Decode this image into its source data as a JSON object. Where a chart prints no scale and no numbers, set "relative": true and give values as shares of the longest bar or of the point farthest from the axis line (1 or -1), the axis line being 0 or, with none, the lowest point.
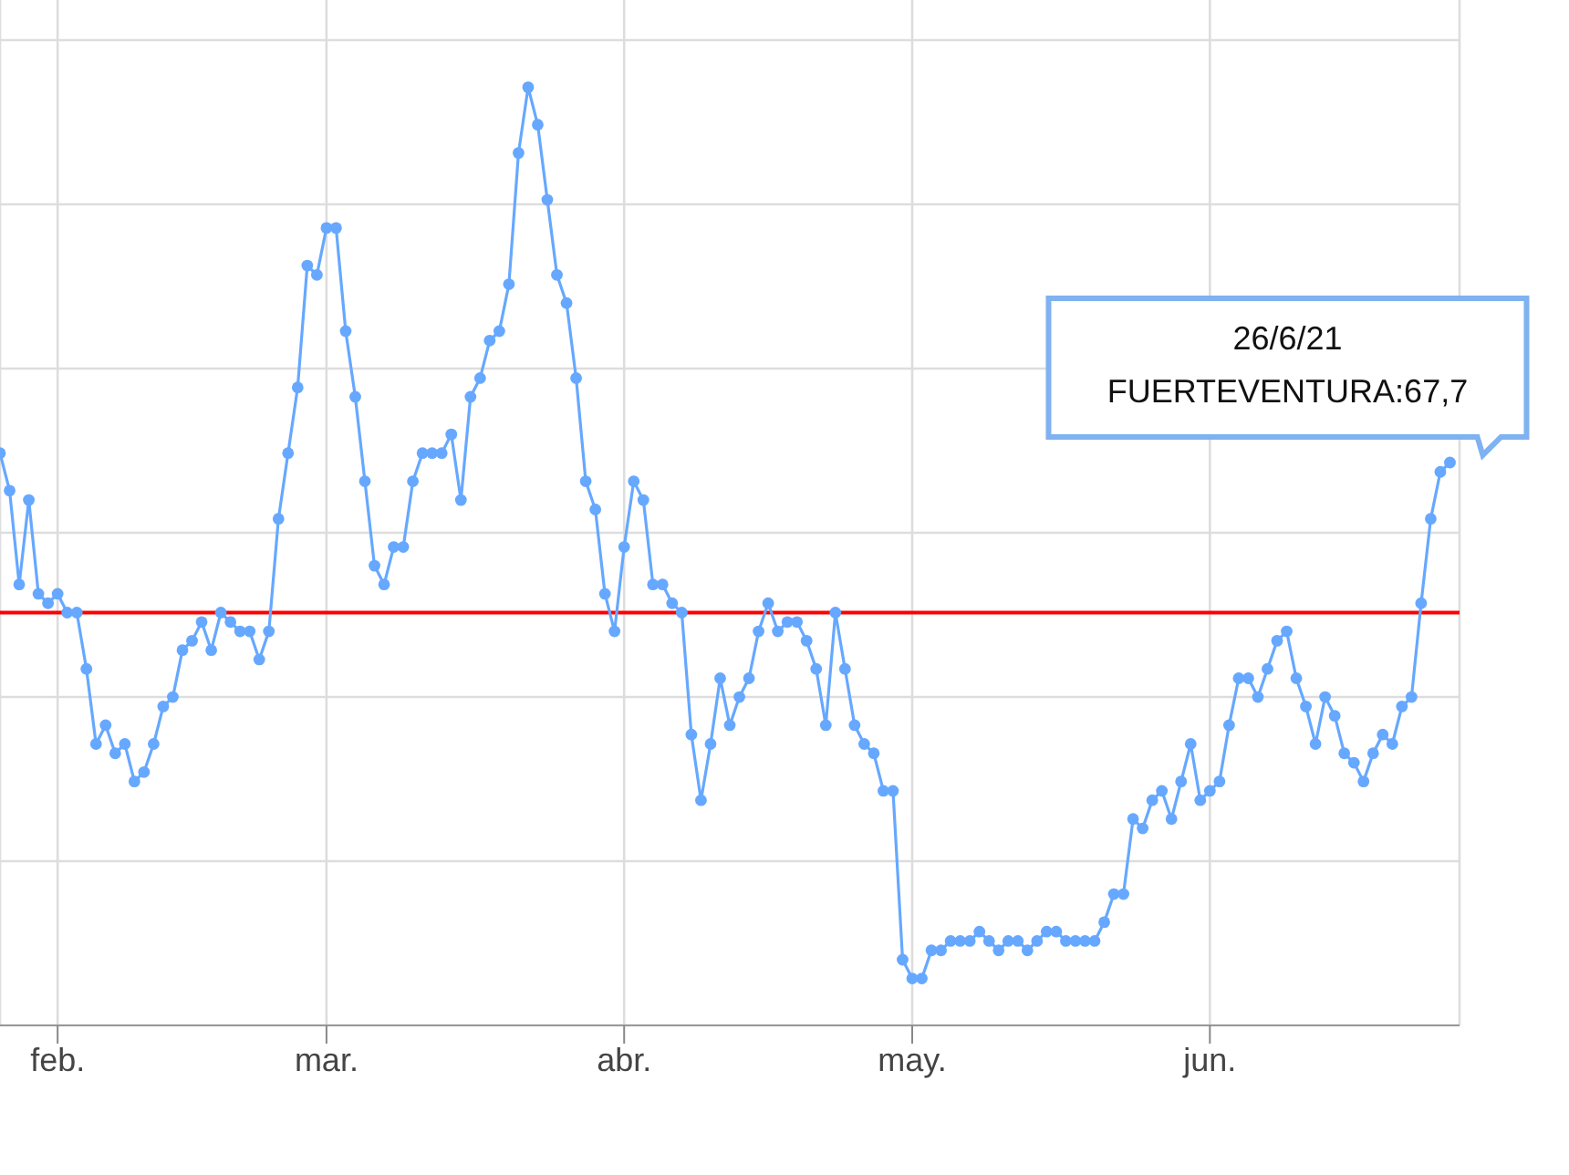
{
  "chart_data": {
    "type": "line",
    "relative": true,
    "grid": true,
    "tick_labels": "x",
    "marker": "circle",
    "line_style": "solid",
    "xlim": [
      "--01-26",
      "--06-27"
    ],
    "xticks": [
      {
        "value": "--02-01",
        "label": "feb."
      },
      {
        "value": "--03-01",
        "label": "mar."
      },
      {
        "value": "--04-01",
        "label": "abr."
      },
      {
        "value": "--05-01",
        "label": "may."
      },
      {
        "value": "--06-01",
        "label": "jun."
      }
    ],
    "ref_lines": [
      {
        "axis": "y",
        "value": 0.44,
        "color": "#ff0000"
      }
    ],
    "annotations": [
      "26/6/21",
      "FUERTEVENTURA:67,7"
    ],
    "x": [
      "--01-26",
      "--01-27",
      "--01-28",
      "--01-29",
      "--01-30",
      "--01-31",
      "--02-01",
      "--02-02",
      "--02-03",
      "--02-04",
      "--02-05",
      "--02-06",
      "--02-07",
      "--02-08",
      "--02-09",
      "--02-10",
      "--02-11",
      "--02-12",
      "--02-13",
      "--02-14",
      "--02-15",
      "--02-16",
      "--02-17",
      "--02-18",
      "--02-19",
      "--02-20",
      "--02-21",
      "--02-22",
      "--02-23",
      "--02-24",
      "--02-25",
      "--02-26",
      "--02-27",
      "--02-28",
      "--03-01",
      "--03-02",
      "--03-03",
      "--03-04",
      "--03-05",
      "--03-06",
      "--03-07",
      "--03-08",
      "--03-09",
      "--03-10",
      "--03-11",
      "--03-12",
      "--03-13",
      "--03-14",
      "--03-15",
      "--03-16",
      "--03-17",
      "--03-18",
      "--03-19",
      "--03-20",
      "--03-21",
      "--03-22",
      "--03-23",
      "--03-24",
      "--03-25",
      "--03-26",
      "--03-27",
      "--03-28",
      "--03-29",
      "--03-30",
      "--03-31",
      "--04-01",
      "--04-02",
      "--04-03",
      "--04-04",
      "--04-05",
      "--04-06",
      "--04-07",
      "--04-08",
      "--04-09",
      "--04-10",
      "--04-11",
      "--04-12",
      "--04-13",
      "--04-14",
      "--04-15",
      "--04-16",
      "--04-17",
      "--04-18",
      "--04-19",
      "--04-20",
      "--04-21",
      "--04-22",
      "--04-23",
      "--04-24",
      "--04-25",
      "--04-26",
      "--04-27",
      "--04-28",
      "--04-29",
      "--04-30",
      "--05-01",
      "--05-02",
      "--05-03",
      "--05-04",
      "--05-05",
      "--05-06",
      "--05-07",
      "--05-08",
      "--05-09",
      "--05-10",
      "--05-11",
      "--05-12",
      "--05-13",
      "--05-14",
      "--05-15",
      "--05-16",
      "--05-17",
      "--05-18",
      "--05-19",
      "--05-20",
      "--05-21",
      "--05-22",
      "--05-23",
      "--05-24",
      "--05-25",
      "--05-26",
      "--05-27",
      "--05-28",
      "--05-29",
      "--05-30",
      "--05-31",
      "--06-01",
      "--06-02",
      "--06-03",
      "--06-04",
      "--06-05",
      "--06-06",
      "--06-07",
      "--06-08",
      "--06-09",
      "--06-10",
      "--06-11",
      "--06-12",
      "--06-13",
      "--06-14",
      "--06-15",
      "--06-16",
      "--06-17",
      "--06-18",
      "--06-19",
      "--06-20",
      "--06-21",
      "--06-22",
      "--06-23",
      "--06-24",
      "--06-25",
      "--06-26"
    ],
    "series": [
      {
        "color": "#66a8ff",
        "values": [
          0.61,
          0.57,
          0.47,
          0.56,
          0.46,
          0.45,
          0.46,
          0.44,
          0.44,
          0.38,
          0.3,
          0.32,
          0.29,
          0.3,
          0.26,
          0.27,
          0.3,
          0.34,
          0.35,
          0.4,
          0.41,
          0.43,
          0.4,
          0.44,
          0.43,
          0.42,
          0.42,
          0.39,
          0.42,
          0.54,
          0.61,
          0.68,
          0.81,
          0.8,
          0.85,
          0.85,
          0.74,
          0.67,
          0.58,
          0.49,
          0.47,
          0.51,
          0.51,
          0.58,
          0.61,
          0.61,
          0.61,
          0.63,
          0.56,
          0.67,
          0.69,
          0.73,
          0.74,
          0.79,
          0.93,
          1,
          0.96,
          0.88,
          0.8,
          0.77,
          0.69,
          0.58,
          0.55,
          0.46,
          0.42,
          0.51,
          0.58,
          0.56,
          0.47,
          0.47,
          0.45,
          0.44,
          0.31,
          0.24,
          0.3,
          0.37,
          0.32,
          0.35,
          0.37,
          0.42,
          0.45,
          0.42,
          0.43,
          0.43,
          0.41,
          0.38,
          0.32,
          0.44,
          0.38,
          0.32,
          0.3,
          0.29,
          0.25,
          0.25,
          0.07,
          0.05,
          0.05,
          0.08,
          0.08,
          0.09,
          0.09,
          0.09,
          0.1,
          0.09,
          0.08,
          0.09,
          0.09,
          0.08,
          0.09,
          0.1,
          0.1,
          0.09,
          0.09,
          0.09,
          0.09,
          0.11,
          0.14,
          0.14,
          0.22,
          0.21,
          0.24,
          0.25,
          0.22,
          0.26,
          0.3,
          0.24,
          0.25,
          0.26,
          0.32,
          0.37,
          0.37,
          0.35,
          0.38,
          0.41,
          0.42,
          0.37,
          0.34,
          0.3,
          0.35,
          0.33,
          0.29,
          0.28,
          0.26,
          0.29,
          0.31,
          0.3,
          0.34,
          0.35,
          0.45,
          0.54,
          0.59,
          0.6
        ]
      }
    ]
  }
}
